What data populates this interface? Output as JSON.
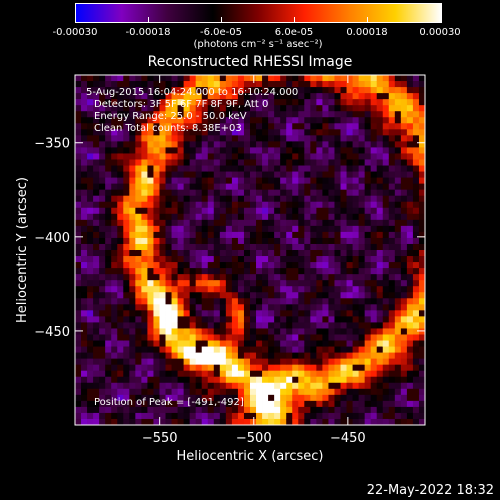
{
  "colorbar": {
    "ticks": [
      "-0.00030",
      "-0.00018",
      "-6.0e-05",
      "6.0e-05",
      "0.00018",
      "0.00030"
    ],
    "tick_values": [
      -0.0003,
      -0.00018,
      -6e-05,
      6e-05,
      0.00018,
      0.0003
    ],
    "range": [
      -0.0003,
      0.0003
    ],
    "colors": [
      "#0000ff",
      "#8000c0",
      "#400040",
      "#000000",
      "#800000",
      "#ff2000",
      "#ff8000",
      "#ffd000",
      "#ffffff"
    ],
    "units_label": "(photons cm⁻² s⁻¹ asec⁻²)"
  },
  "plot": {
    "title": "Reconstructed RHESSI Image",
    "info_lines": [
      "5-Aug-2015 16:04:24.000 to 16:10:24.000",
      "Detectors: 3F 5F 6F 7F 8F 9F, Att 0",
      "Energy Range: 25.0 - 50.0 keV",
      "Clean       Total counts: 8.38E+03"
    ],
    "peak_text": "Position of Peak = [-491,-492]"
  },
  "chart_data": {
    "type": "heatmap",
    "title": "Reconstructed RHESSI Image",
    "xlabel": "Heliocentric X (arcsec)",
    "ylabel": "Heliocentric Y (arcsec)",
    "xlim": [
      -595,
      -409
    ],
    "ylim": [
      -500,
      -314
    ],
    "xticks": [
      -550,
      -500,
      -450
    ],
    "yticks": [
      -350,
      -400,
      -450
    ],
    "xtick_labels": [
      "−550",
      "−500",
      "−450"
    ],
    "ytick_labels": [
      "−350",
      "−400",
      "−450"
    ],
    "peak_position": [
      -491,
      -492
    ],
    "colorbar_range": [
      -0.0003,
      0.0003
    ]
  },
  "footer": {
    "date": "22-May-2022 18:32"
  }
}
